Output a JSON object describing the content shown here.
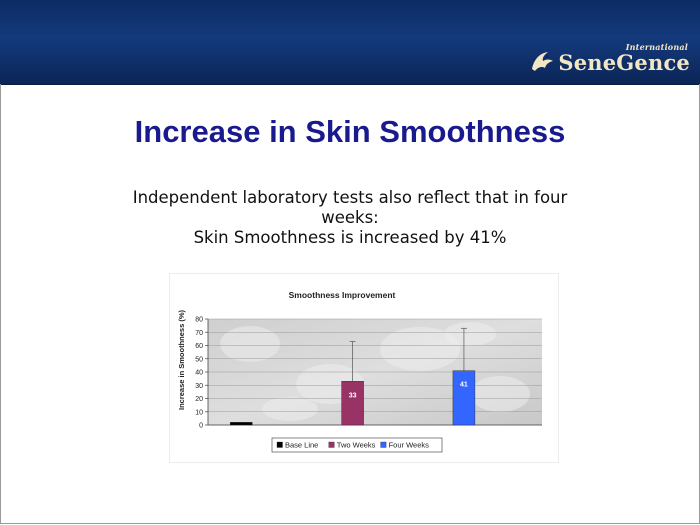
{
  "brand": {
    "name": "SeneGence",
    "tagline": "International",
    "logo_icon": "senegence-logo-icon"
  },
  "slide": {
    "title": "Increase in Skin Smoothness",
    "subtitle_lines": [
      "Independent laboratory tests also reflect that in four",
      "weeks:",
      "Skin Smoothness is increased by 41%"
    ]
  },
  "colors": {
    "header": "#143a7c",
    "title": "#1a1a8f",
    "base_line": "#000000",
    "two_weeks": "#993366",
    "four_weeks": "#3366ff"
  },
  "chart_data": {
    "type": "bar",
    "title": "Smoothness Improvement",
    "xlabel": "",
    "ylabel": "Increase in Smoothness (%)",
    "ylim": [
      0,
      80
    ],
    "yticks": [
      0,
      10,
      20,
      30,
      40,
      50,
      60,
      70,
      80
    ],
    "grid": true,
    "legend_position": "bottom",
    "series": [
      {
        "name": "Base Line",
        "value": 2,
        "error_upper": null,
        "label": null,
        "color": "#000000"
      },
      {
        "name": "Two Weeks",
        "value": 33,
        "error_upper": 63,
        "label": "33",
        "color": "#993366"
      },
      {
        "name": "Four Weeks",
        "value": 41,
        "error_upper": 73,
        "label": "41",
        "color": "#3366ff"
      }
    ]
  }
}
